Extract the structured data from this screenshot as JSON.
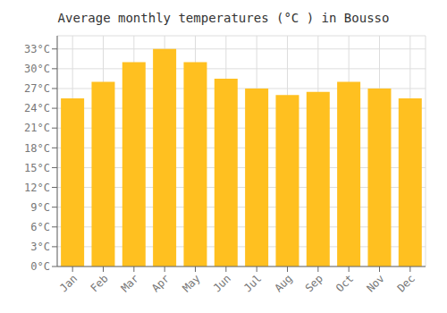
{
  "chart_data": {
    "type": "bar",
    "title": "Average monthly temperatures (°C ) in Bousso",
    "categories": [
      "Jan",
      "Feb",
      "Mar",
      "Apr",
      "May",
      "Jun",
      "Jul",
      "Aug",
      "Sep",
      "Oct",
      "Nov",
      "Dec"
    ],
    "values": [
      25.5,
      28.0,
      31.0,
      33.0,
      31.0,
      28.5,
      27.0,
      26.0,
      26.5,
      28.0,
      27.0,
      25.5
    ],
    "color": "#FFC020",
    "ylim": [
      0,
      35
    ],
    "yticks": [
      {
        "value": 0,
        "label": "0°C"
      },
      {
        "value": 3,
        "label": "3°C"
      },
      {
        "value": 6,
        "label": "6°C"
      },
      {
        "value": 9,
        "label": "9°C"
      },
      {
        "value": 12,
        "label": "12°C"
      },
      {
        "value": 15,
        "label": "15°C"
      },
      {
        "value": 18,
        "label": "18°C"
      },
      {
        "value": 21,
        "label": "21°C"
      },
      {
        "value": 24,
        "label": "24°C"
      },
      {
        "value": 27,
        "label": "27°C"
      },
      {
        "value": 30,
        "label": "30°C"
      },
      {
        "value": 33,
        "label": "33°C"
      }
    ],
    "grid": true
  }
}
